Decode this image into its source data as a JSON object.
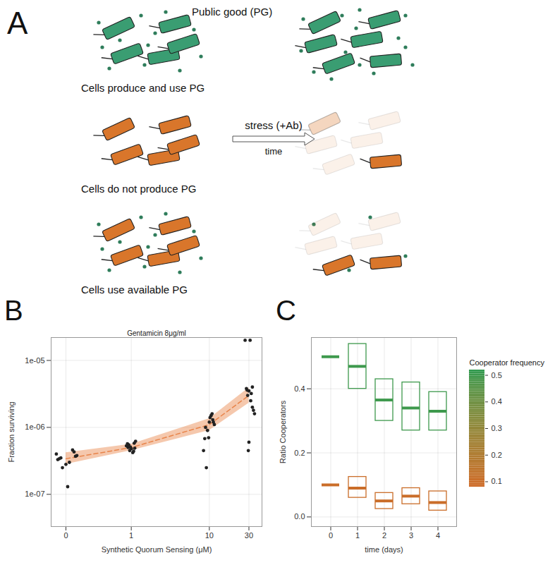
{
  "diagram": {
    "label": "A",
    "pg_label": "Public good (PG)",
    "arrow_label": "stress (+Ab)",
    "arrow_sublabel": "time",
    "colors": {
      "producer": "#3a9d72",
      "non_producer": "#d9762b",
      "public_good": "#2f7d5b"
    },
    "rows": [
      {
        "caption": "Cells produce and use PG"
      },
      {
        "caption": "Cells do not produce PG"
      },
      {
        "caption": "Cells use available PG"
      }
    ]
  },
  "chart_data": [
    {
      "type": "scatter",
      "panel_label": "B",
      "title": "Gentamicin 8μg/ml",
      "x_label": "Synthetic Quorum Sensing (μM)",
      "y_label": "Fraction surviving",
      "log": "y",
      "grid": true,
      "xlim": [
        -0.1,
        43
      ],
      "xticks": [
        0,
        1,
        10,
        30
      ],
      "ylim": [
        3.3e-08,
        2.2e-05
      ],
      "yticks": [
        {
          "value": 1e-07,
          "label": "1e-07"
        },
        {
          "value": 1e-06,
          "label": "1e-06"
        },
        {
          "value": 1e-05,
          "label": "1e-05"
        }
      ],
      "points": {
        "color": "#222222",
        "x": [
          -0.05,
          0.04,
          -0.02,
          0.06,
          -0.06,
          0.02,
          0.0,
          -0.03,
          0.05,
          0.07,
          -0.04,
          0.01,
          0.9,
          1.1,
          0.95,
          1.05,
          0.85,
          1.15,
          1.0,
          0.92,
          1.08,
          0.97,
          1.12,
          0.88,
          9,
          11,
          10.5,
          9.5,
          10,
          8.5,
          8.8,
          9.2,
          11.5,
          10.2,
          10.8,
          9.8,
          11.2,
          27,
          31,
          28,
          32,
          33,
          30,
          29,
          31.5,
          34,
          33,
          35,
          30,
          29.5,
          28.5
        ],
        "values": [
          3.3e-07,
          4.6e-07,
          2.5e-07,
          3.7e-07,
          4e-07,
          3e-07,
          2.8e-07,
          3.5e-07,
          4.3e-07,
          3.8e-07,
          3.4e-07,
          1.3e-07,
          5e-07,
          5.8e-07,
          4.5e-07,
          4.2e-07,
          5.3e-07,
          6.2e-07,
          4.8e-07,
          5.5e-07,
          4.4e-07,
          5.1e-07,
          4.9e-07,
          5.7e-07,
          1e-06,
          1.3e-06,
          1.5e-06,
          9e-07,
          1.2e-06,
          4.5e-07,
          6.8e-07,
          2.5e-07,
          1.1e-06,
          1.4e-06,
          1.6e-06,
          7e-07,
          1.2e-06,
          2e-05,
          2e-05,
          3.8e-06,
          3.2e-06,
          4e-06,
          3.5e-06,
          3e-06,
          2.5e-06,
          1.8e-06,
          2e-06,
          1.6e-06,
          6e-07,
          4.5e-07,
          3.6e-06
        ]
      },
      "fit": {
        "color": "#e8844a",
        "line_style": "dashed",
        "x": [
          0,
          1,
          10,
          30
        ],
        "values": [
          3.4e-07,
          5e-07,
          1.1e-06,
          3e-06
        ],
        "lower": [
          2.8e-07,
          4.5e-07,
          9e-07,
          2.3e-06
        ],
        "upper": [
          4.2e-07,
          5.6e-07,
          1.35e-06,
          3.9e-06
        ]
      }
    },
    {
      "type": "box",
      "panel_label": "C",
      "x_label": "time (days)",
      "y_label": "Ratio Cooperators",
      "grid": true,
      "x": [
        0,
        1,
        2,
        3,
        4
      ],
      "ylim": [
        -0.03,
        0.56
      ],
      "yticks": [
        {
          "value": 0,
          "label": "0.0"
        },
        {
          "value": 0.2,
          "label": "0.2"
        },
        {
          "value": 0.4,
          "label": "0.4"
        }
      ],
      "series": [
        {
          "frequency": 0.5,
          "median": [
            0.5,
            0.47,
            0.365,
            0.34,
            0.33
          ],
          "lower": [
            0.5,
            0.4,
            0.3,
            0.27,
            0.27
          ],
          "upper": [
            0.5,
            0.54,
            0.43,
            0.42,
            0.39
          ]
        },
        {
          "frequency": 0.1,
          "median": [
            0.1,
            0.09,
            0.05,
            0.065,
            0.045
          ],
          "lower": [
            0.1,
            0.06,
            0.025,
            0.04,
            0.02
          ],
          "upper": [
            0.1,
            0.125,
            0.075,
            0.09,
            0.08
          ]
        }
      ],
      "colorbar": {
        "title": "Cooperator frequency",
        "range": [
          0.08,
          0.52
        ],
        "ticks": [
          0.1,
          0.2,
          0.3,
          0.4,
          0.5
        ],
        "colors": [
          "#cf6a27",
          "#2e9a4f"
        ]
      }
    }
  ]
}
